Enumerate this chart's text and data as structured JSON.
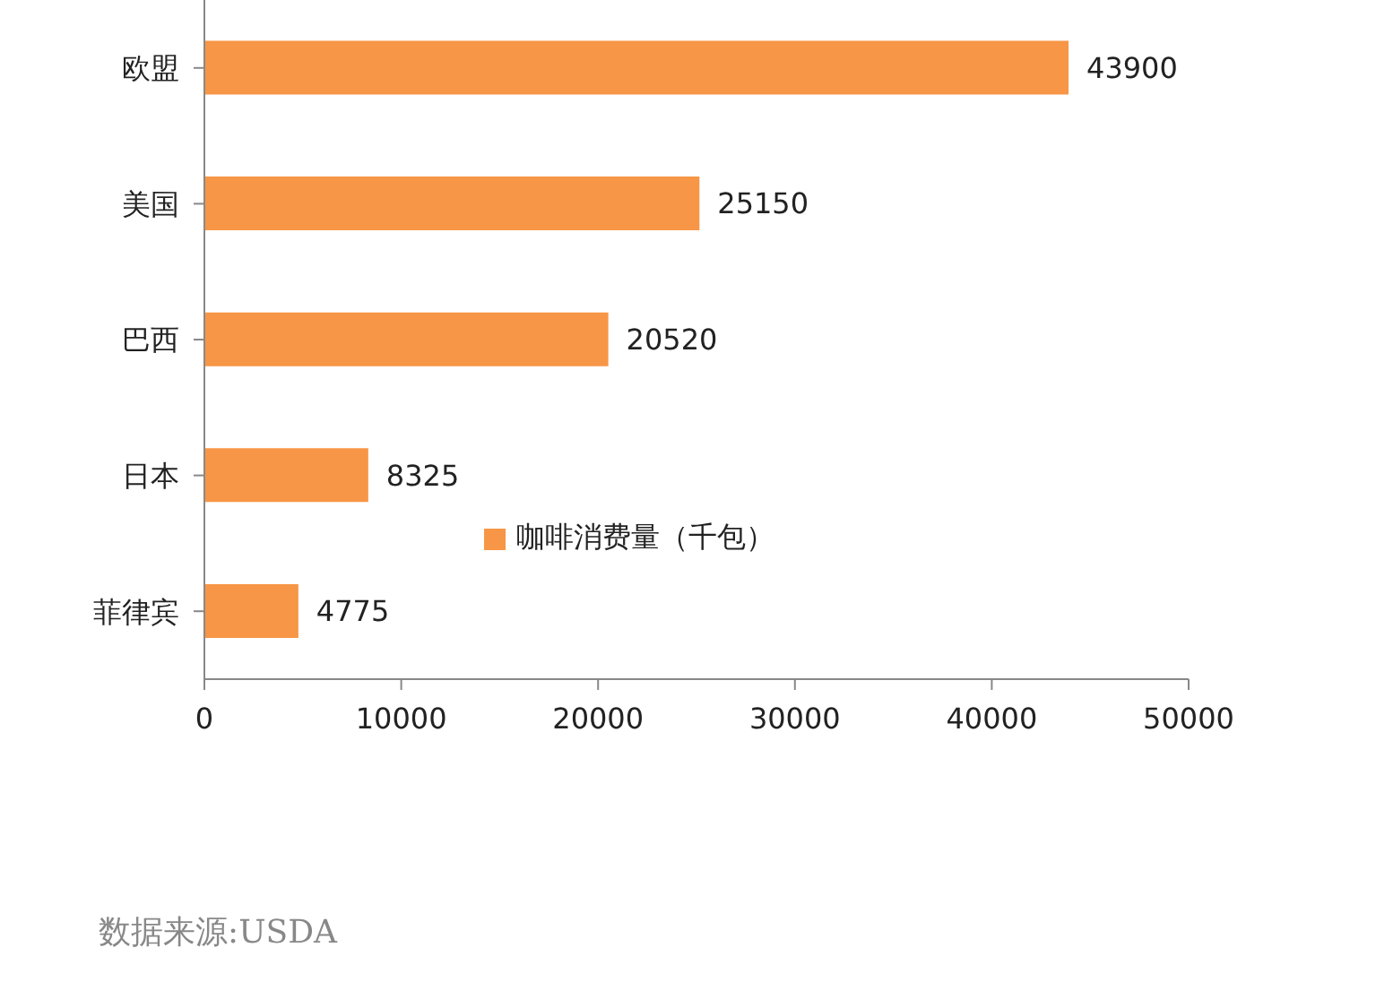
{
  "chart_data": {
    "type": "bar",
    "orientation": "horizontal",
    "categories": [
      "欧盟",
      "美国",
      "巴西",
      "日本",
      "菲律宾"
    ],
    "series": [
      {
        "name": "咖啡消费量（千包）",
        "color": "#f79646",
        "values": [
          43900,
          25150,
          20520,
          8325,
          4775
        ]
      }
    ],
    "xlim": [
      0,
      50000
    ],
    "xticks": [
      0,
      10000,
      20000,
      30000,
      40000,
      50000
    ],
    "grid": false,
    "data_labels": true,
    "legend": "bottom",
    "annotations": [
      "数据来源:USDA"
    ]
  }
}
